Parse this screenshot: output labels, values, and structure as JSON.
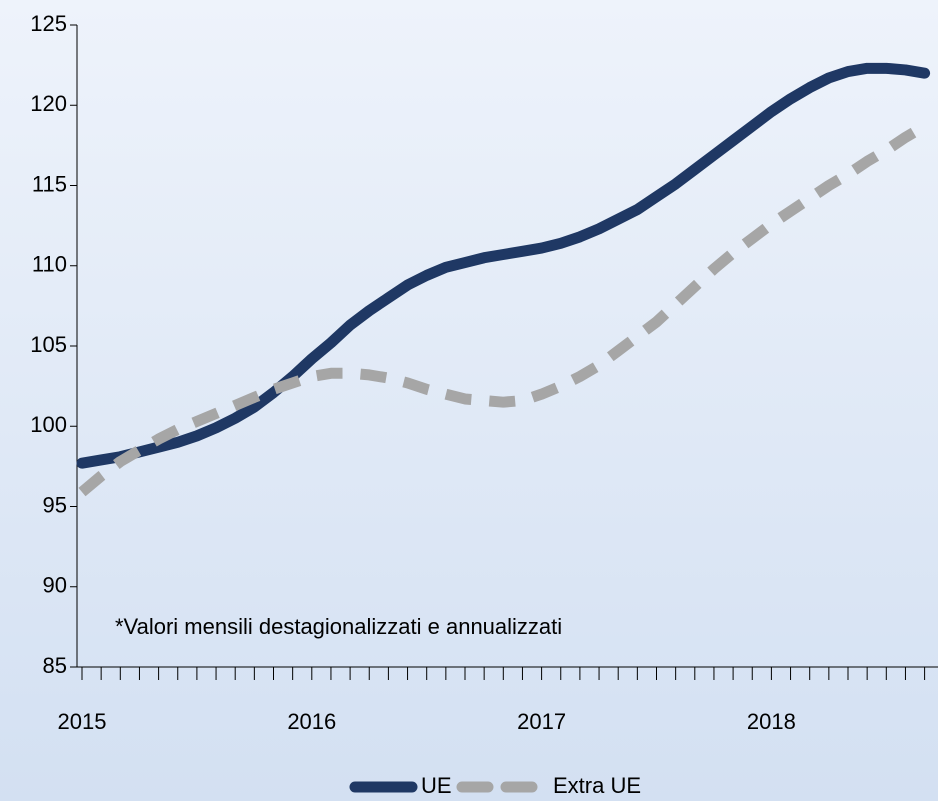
{
  "chart_data": {
    "type": "line",
    "annotations": [
      "*Valori mensili destagionalizzati e annualizzati"
    ],
    "categories": [
      "2015",
      null,
      null,
      null,
      null,
      null,
      null,
      null,
      null,
      null,
      null,
      null,
      "2016",
      null,
      null,
      null,
      null,
      null,
      null,
      null,
      null,
      null,
      null,
      null,
      "2017",
      null,
      null,
      null,
      null,
      null,
      null,
      null,
      null,
      null,
      null,
      null,
      "2018",
      null,
      null,
      null,
      null,
      null,
      null,
      null,
      null
    ],
    "series": [
      {
        "name": "UE",
        "color": "#1f3864",
        "linestyle": "solid",
        "values": [
          97.7,
          97.9,
          98.1,
          98.4,
          98.7,
          99.0,
          99.4,
          99.9,
          100.5,
          101.2,
          102.1,
          103.1,
          104.2,
          105.2,
          106.3,
          107.2,
          108.0,
          108.8,
          109.4,
          109.9,
          110.2,
          110.5,
          110.7,
          110.9,
          111.1,
          111.4,
          111.8,
          112.3,
          112.9,
          113.5,
          114.3,
          115.1,
          116.0,
          116.9,
          117.8,
          118.7,
          119.6,
          120.4,
          121.1,
          121.7,
          122.1,
          122.3,
          122.3,
          122.2,
          122.0
        ]
      },
      {
        "name": "Extra UE",
        "color": "#a6a6a6",
        "linestyle": "dashed",
        "values": [
          95.9,
          96.9,
          97.8,
          98.5,
          99.2,
          99.8,
          100.3,
          100.8,
          101.3,
          101.8,
          102.3,
          102.7,
          103.1,
          103.3,
          103.3,
          103.2,
          103.0,
          102.7,
          102.3,
          102.0,
          101.7,
          101.6,
          101.5,
          101.6,
          102.0,
          102.5,
          103.1,
          103.8,
          104.7,
          105.6,
          106.5,
          107.6,
          108.7,
          109.8,
          110.8,
          111.7,
          112.6,
          113.4,
          114.2,
          115.0,
          115.7,
          116.5,
          117.2,
          118.0,
          118.7
        ]
      }
    ],
    "ylim": [
      85,
      125
    ],
    "yticks": [
      85,
      90,
      95,
      100,
      105,
      110,
      115,
      120,
      125
    ],
    "grid": false,
    "legend": "bottom"
  }
}
